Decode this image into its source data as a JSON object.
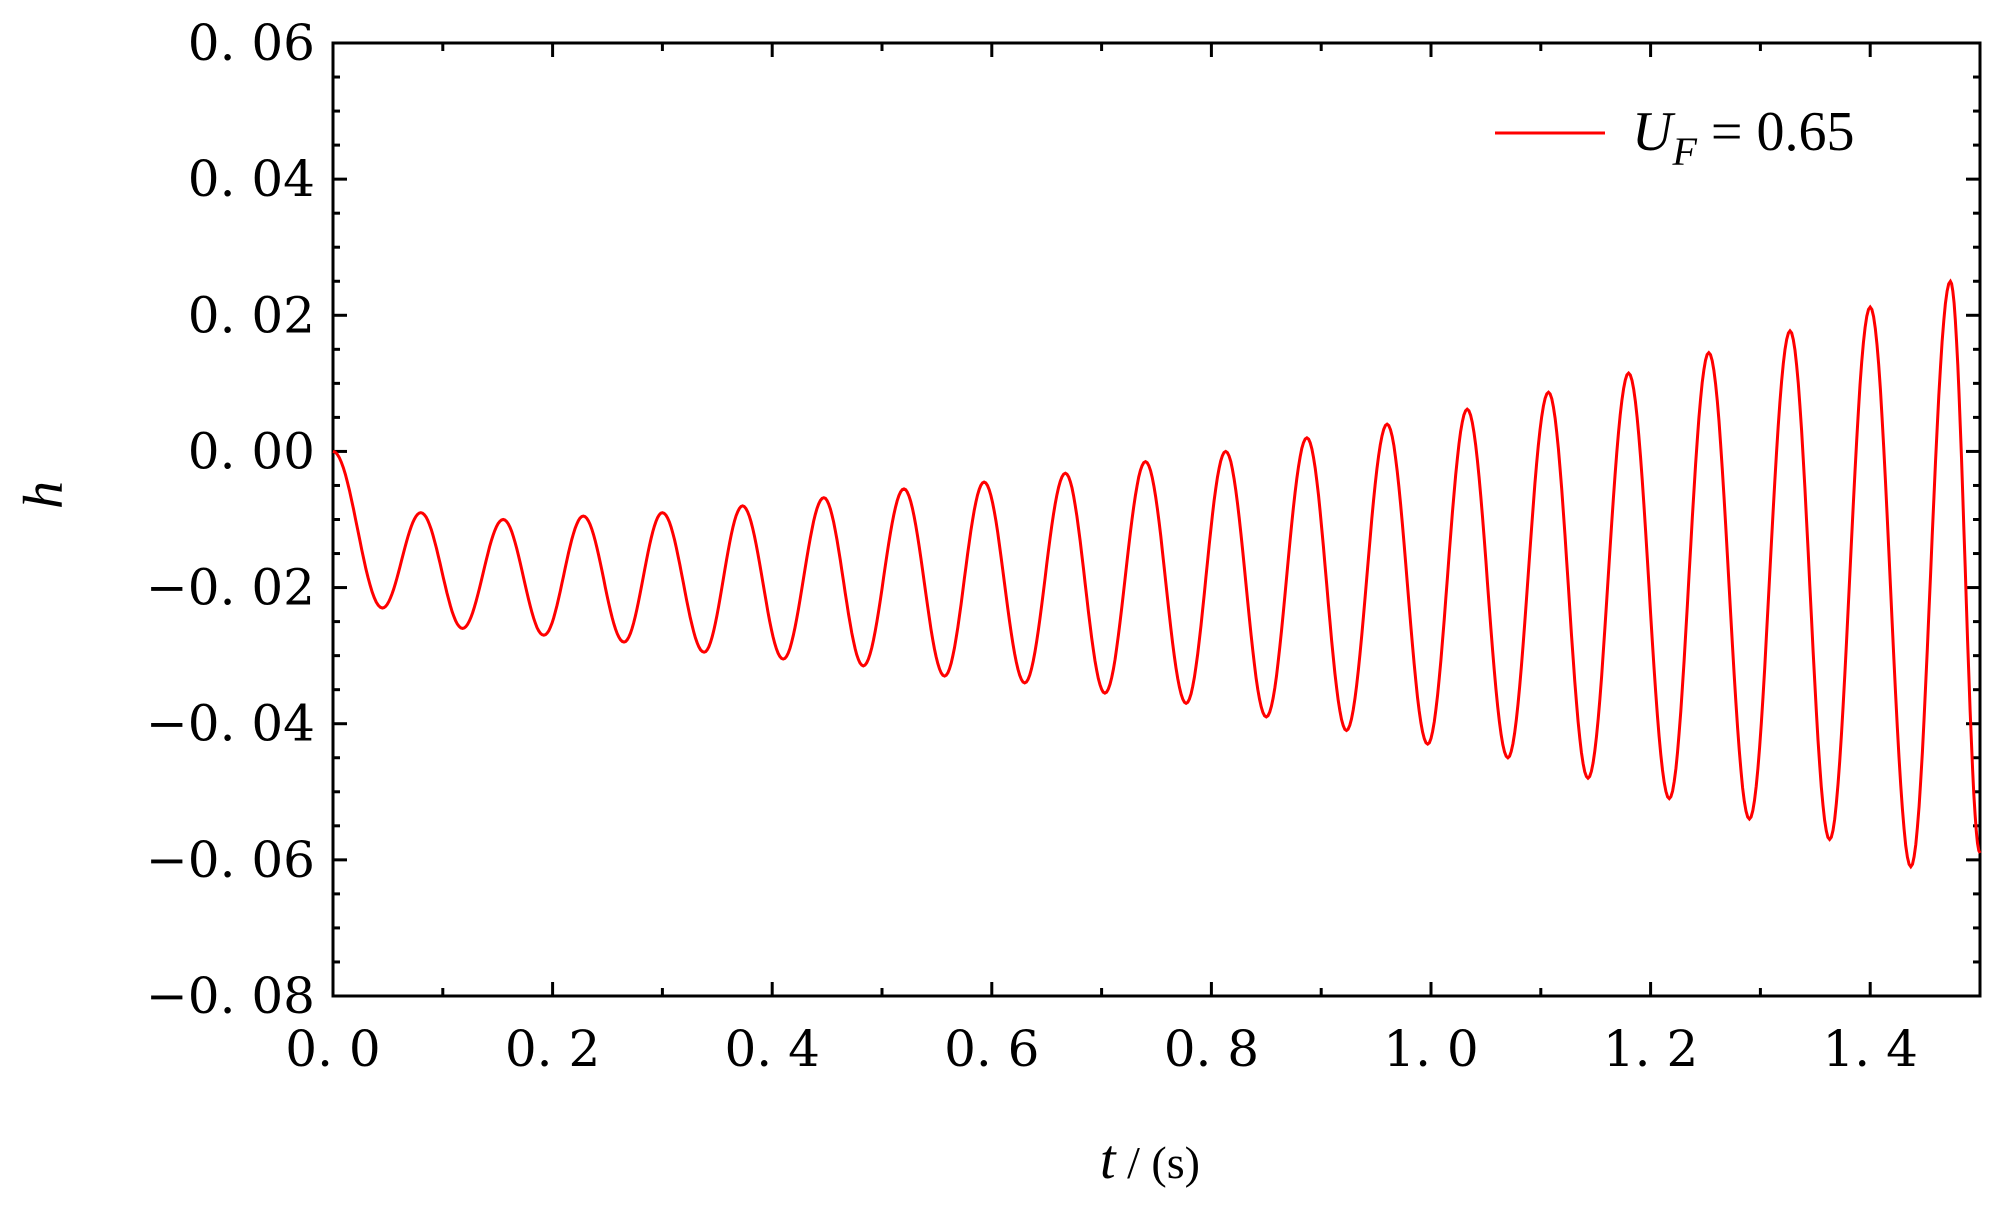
{
  "chart_data": {
    "type": "line",
    "xlabel": "t",
    "xlabel_unit": "(s)",
    "ylabel": "h",
    "xlim": [
      0.0,
      1.5
    ],
    "ylim": [
      -0.08,
      0.06
    ],
    "x_ticks": [
      0.0,
      0.2,
      0.4,
      0.6,
      0.8,
      1.0,
      1.2,
      1.4
    ],
    "x_tick_labels": [
      "0. 0",
      "0. 2",
      "0. 4",
      "0. 6",
      "0. 8",
      "1. 0",
      "1. 2",
      "1. 4"
    ],
    "y_ticks": [
      0.06,
      0.04,
      0.02,
      0.0,
      -0.02,
      -0.04,
      -0.06,
      -0.08
    ],
    "y_tick_labels": [
      "0. 06",
      "0. 04",
      "0. 02",
      "0. 00",
      "−0. 02",
      "−0. 04",
      "−0. 06",
      "−0. 08"
    ],
    "grid": false,
    "legend_position": "top-right",
    "legend": {
      "main": "U",
      "subscript": "F",
      "suffix": " = 0.65"
    },
    "series": [
      {
        "color": "#ff0000",
        "x": [
          0.0,
          0.045,
          0.08,
          0.118,
          0.155,
          0.192,
          0.228,
          0.265,
          0.3,
          0.338,
          0.373,
          0.41,
          0.447,
          0.483,
          0.52,
          0.557,
          0.593,
          0.63,
          0.667,
          0.703,
          0.74,
          0.777,
          0.813,
          0.85,
          0.887,
          0.923,
          0.96,
          0.997,
          1.033,
          1.07,
          1.107,
          1.143,
          1.18,
          1.217,
          1.253,
          1.29,
          1.327,
          1.363,
          1.4,
          1.437,
          1.473,
          1.5
        ],
        "y": [
          0.0,
          -0.023,
          -0.009,
          -0.026,
          -0.01,
          -0.027,
          -0.0095,
          -0.028,
          -0.009,
          -0.0295,
          -0.008,
          -0.0305,
          -0.0068,
          -0.0315,
          -0.0055,
          -0.033,
          -0.0045,
          -0.034,
          -0.0032,
          -0.0355,
          -0.0015,
          -0.037,
          0.0,
          -0.039,
          0.002,
          -0.041,
          0.004,
          -0.043,
          0.0062,
          -0.045,
          0.0087,
          -0.048,
          0.0115,
          -0.051,
          0.0145,
          -0.054,
          0.0177,
          -0.057,
          0.0212,
          -0.061,
          0.025,
          -0.059
        ]
      }
    ]
  }
}
